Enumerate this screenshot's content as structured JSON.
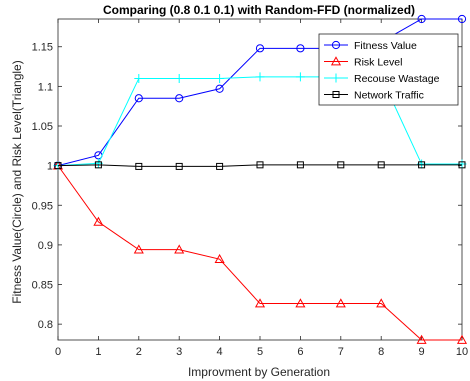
{
  "chart_data": {
    "type": "line",
    "title": "Comparing (0.8 0.1 0.1) with Random-FFD (normalized)",
    "xlabel": "Improvment by Generation",
    "ylabel": "Fitness Value(Circle) and Risk Level(Triangle)",
    "xlim": [
      0,
      10
    ],
    "ylim": [
      0.78,
      1.185
    ],
    "x_ticks": [
      "0",
      "1",
      "2",
      "3",
      "4",
      "5",
      "6",
      "7",
      "8",
      "9",
      "10"
    ],
    "y_ticks": [
      "0.8",
      "0.85",
      "0.9",
      "0.95",
      "1",
      "1.05",
      "1.1",
      "1.15"
    ],
    "grid": false,
    "legend_position": "top-right",
    "x": [
      0,
      1,
      2,
      3,
      4,
      5,
      6,
      7,
      8,
      9,
      10
    ],
    "series": [
      {
        "name": "Fitness Value",
        "marker": "circle",
        "color": "#0000FF",
        "values": [
          1.0,
          1.013,
          1.085,
          1.085,
          1.097,
          1.148,
          1.148,
          1.148,
          1.156,
          1.185,
          1.185
        ]
      },
      {
        "name": "Risk Level",
        "marker": "triangle",
        "color": "#FF0000",
        "values": [
          1.0,
          0.929,
          0.894,
          0.894,
          0.882,
          0.826,
          0.826,
          0.826,
          0.826,
          0.78,
          0.78
        ]
      },
      {
        "name": "Recouse Wastage",
        "marker": "plus",
        "color": "#00FFFF",
        "values": [
          1.0,
          1.003,
          1.11,
          1.11,
          1.11,
          1.112,
          1.112,
          1.112,
          1.112,
          1.002,
          1.002
        ]
      },
      {
        "name": "Network Traffic",
        "marker": "square",
        "color": "#000000",
        "values": [
          1.0,
          1.001,
          0.999,
          0.999,
          0.999,
          1.001,
          1.001,
          1.001,
          1.001,
          1.001,
          1.001
        ]
      }
    ]
  }
}
